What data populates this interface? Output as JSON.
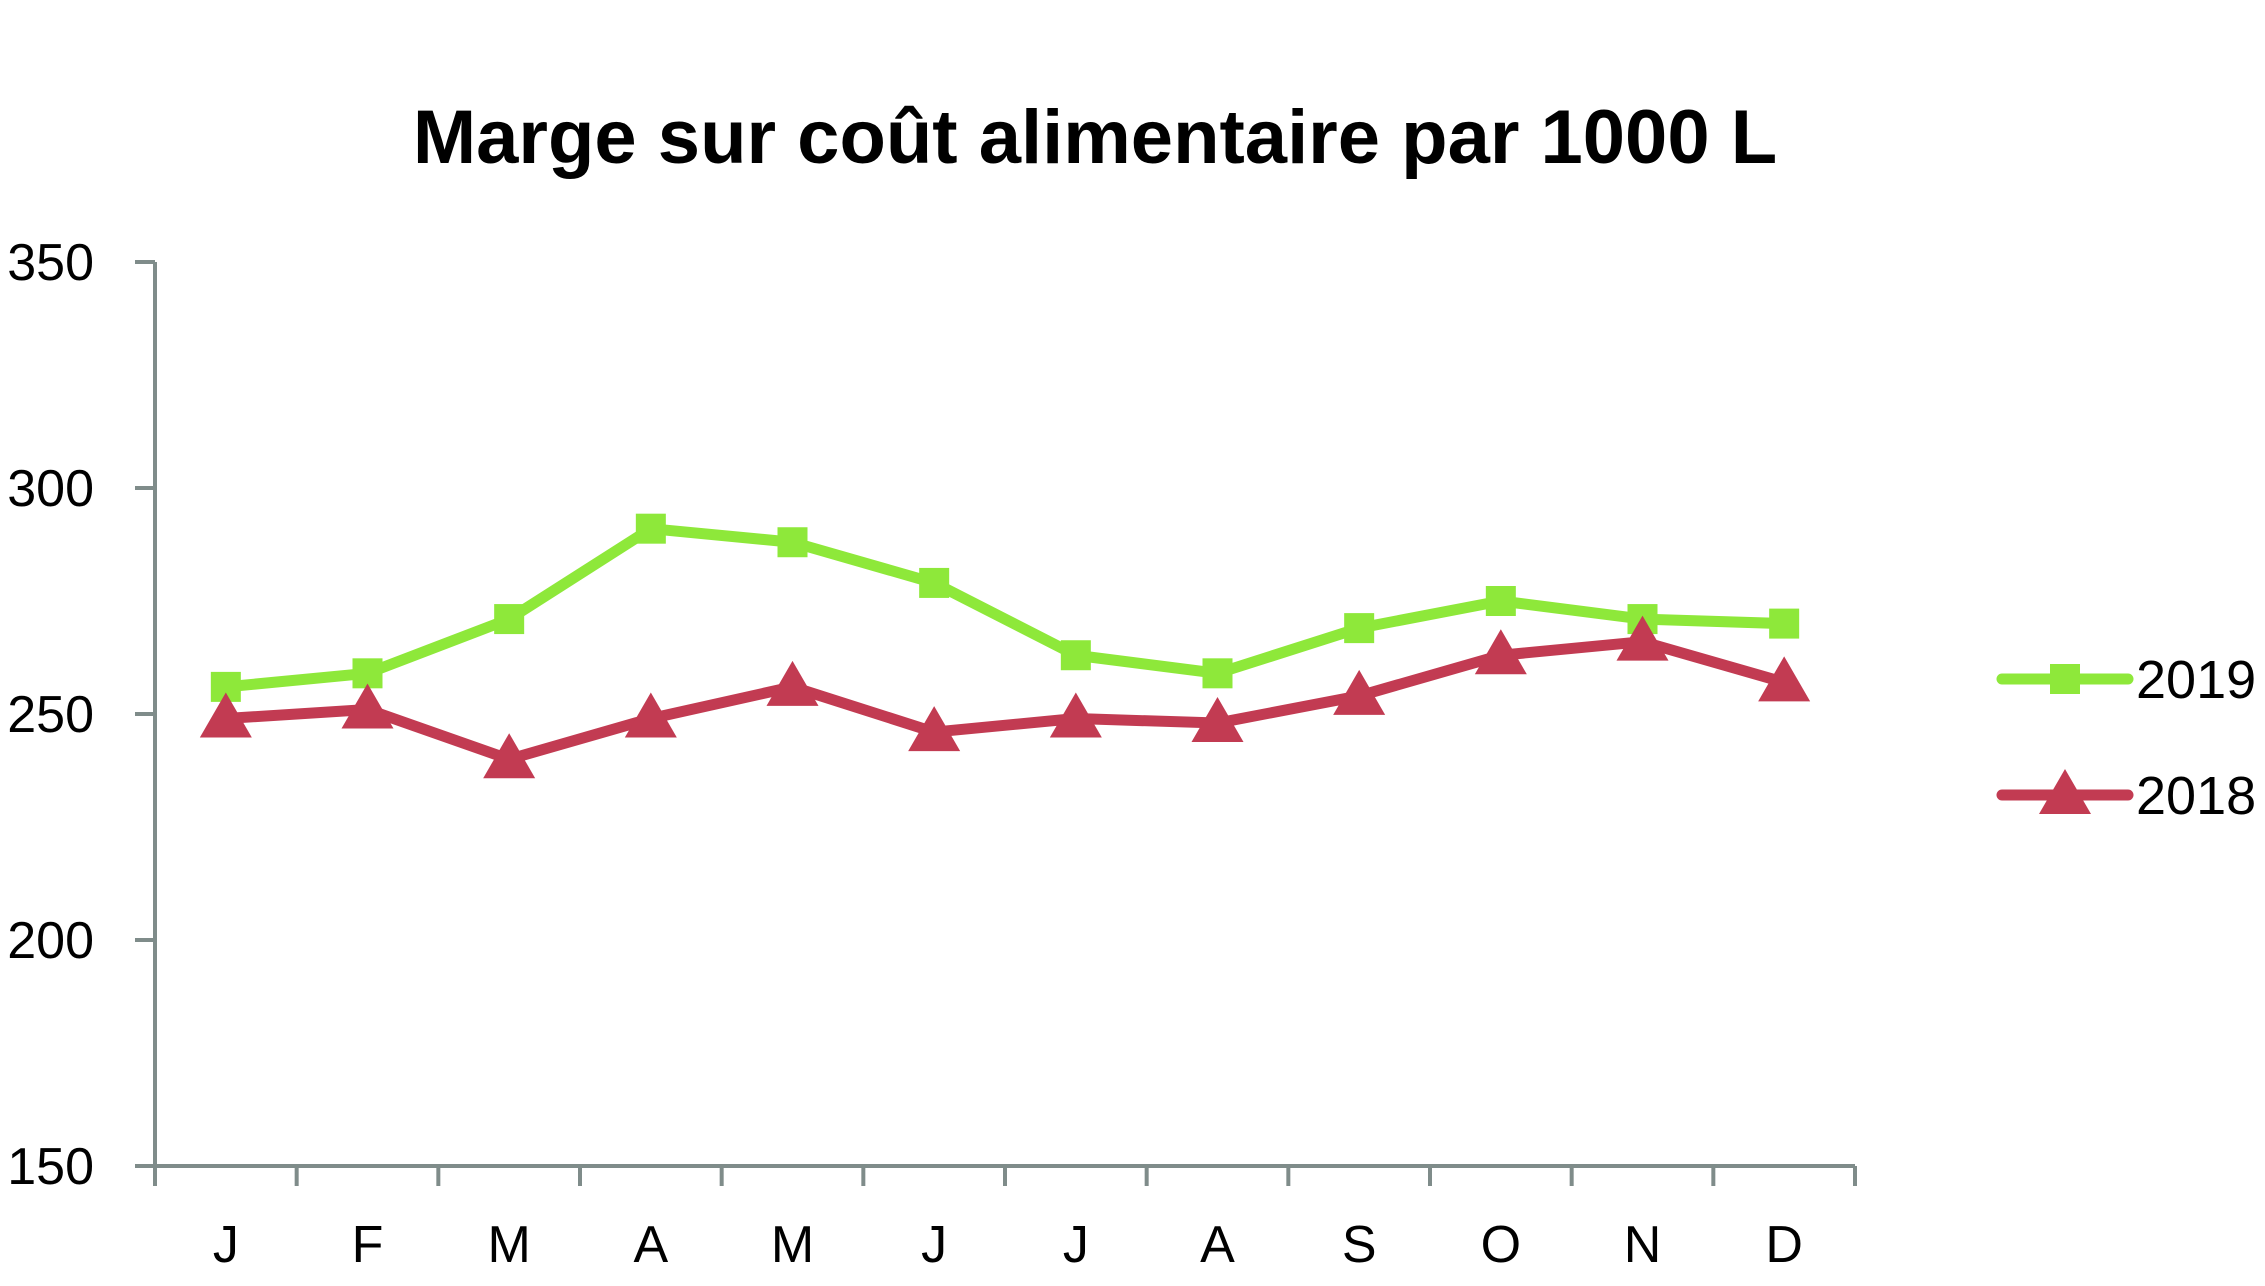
{
  "chart_data": {
    "type": "line",
    "title": "Marge sur coût alimentaire par 1000 L",
    "xlabel": "",
    "ylabel": "",
    "categories": [
      "J",
      "F",
      "M",
      "A",
      "M",
      "J",
      "J",
      "A",
      "S",
      "O",
      "N",
      "D"
    ],
    "ylim": [
      150,
      350
    ],
    "yticks": [
      "150",
      "200",
      "250",
      "300",
      "350"
    ],
    "grid": false,
    "legend_position": "right",
    "series": [
      {
        "name": "2019",
        "color": "#8ee83a",
        "marker": "square",
        "values": [
          256,
          259,
          271,
          291,
          288,
          279,
          263,
          259,
          269,
          275,
          271,
          270
        ]
      },
      {
        "name": "2018",
        "color": "#c23b52",
        "marker": "triangle",
        "values": [
          249,
          251,
          240,
          249,
          256,
          246,
          249,
          248,
          254,
          263,
          266,
          257
        ]
      }
    ]
  }
}
